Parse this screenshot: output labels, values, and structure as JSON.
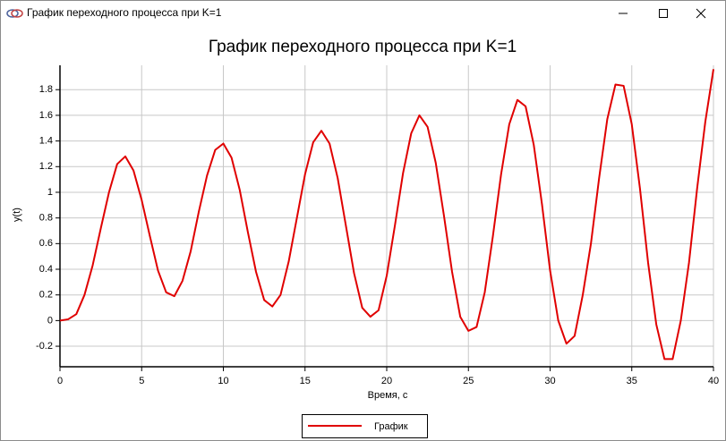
{
  "window": {
    "title": "График переходного процесса при K=1"
  },
  "chart_data": {
    "type": "line",
    "title": "График переходного процесса при K=1",
    "x_label": "Время, с",
    "y_label": "y(t)",
    "x": [
      0,
      0.5,
      1,
      1.5,
      2,
      2.5,
      3,
      3.5,
      4,
      4.5,
      5,
      5.5,
      6,
      6.5,
      7,
      7.5,
      8,
      8.5,
      9,
      9.5,
      10,
      10.5,
      11,
      11.5,
      12,
      12.5,
      13,
      13.5,
      14,
      14.5,
      15,
      15.5,
      16,
      16.5,
      17,
      17.5,
      18,
      18.5,
      19,
      19.5,
      20,
      20.5,
      21,
      21.5,
      22,
      22.5,
      23,
      23.5,
      24,
      24.5,
      25,
      25.5,
      26,
      26.5,
      27,
      27.5,
      28,
      28.5,
      29,
      29.5,
      30,
      30.5,
      31,
      31.5,
      32,
      32.5,
      33,
      33.5,
      34,
      34.5,
      35,
      35.5,
      36,
      36.5,
      37,
      37.5,
      38,
      38.5,
      39,
      39.5,
      40
    ],
    "series": [
      {
        "name": "График",
        "color": "#e00000",
        "values": [
          0,
          0.01,
          0.05,
          0.2,
          0.43,
          0.72,
          1.0,
          1.22,
          1.28,
          1.17,
          0.94,
          0.66,
          0.39,
          0.22,
          0.19,
          0.31,
          0.54,
          0.85,
          1.13,
          1.33,
          1.38,
          1.27,
          1.02,
          0.69,
          0.38,
          0.16,
          0.11,
          0.2,
          0.46,
          0.8,
          1.14,
          1.39,
          1.48,
          1.38,
          1.11,
          0.74,
          0.37,
          0.1,
          0.03,
          0.08,
          0.35,
          0.74,
          1.15,
          1.46,
          1.6,
          1.51,
          1.23,
          0.82,
          0.38,
          0.03,
          -0.08,
          -0.05,
          0.22,
          0.66,
          1.14,
          1.53,
          1.72,
          1.67,
          1.37,
          0.91,
          0.39,
          0.0,
          -0.18,
          -0.12,
          0.2,
          0.6,
          1.11,
          1.57,
          1.84,
          1.83,
          1.53,
          1.03,
          0.45,
          -0.03,
          -0.3,
          -0.3,
          0.0,
          0.45,
          1.03,
          1.55,
          1.96
        ]
      }
    ],
    "xlim": [
      0,
      40
    ],
    "xticks": [
      0,
      5,
      10,
      15,
      20,
      25,
      30,
      35,
      40
    ],
    "ylim": [
      -0.36,
      1.99
    ],
    "yticks": [
      -0.2,
      0,
      0.2,
      0.4,
      0.6,
      0.8,
      1,
      1.2,
      1.4,
      1.6,
      1.8
    ],
    "grid": true,
    "legend": "bottom"
  }
}
